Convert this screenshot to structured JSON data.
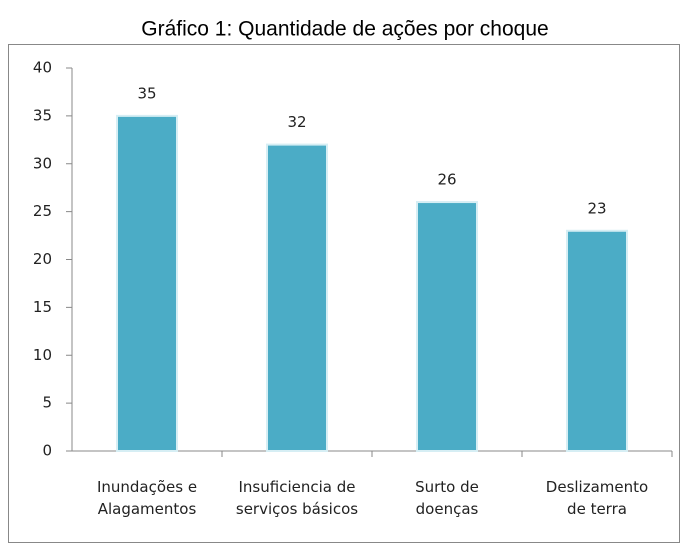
{
  "chart_data": {
    "type": "bar",
    "title": "Gráfico 1: Quantidade de ações por choque",
    "categories": [
      "Inundações e\nAlagamentos",
      "Insuficiencia de\nserviços básicos",
      "Surto de\ndoenças",
      "Deslizamento\nde terra"
    ],
    "values": [
      35,
      32,
      26,
      23
    ],
    "color": "#4bacc6",
    "ylim": [
      0,
      40
    ],
    "yticks": [
      0,
      5,
      10,
      15,
      20,
      25,
      30,
      35,
      40
    ],
    "grid": false
  }
}
